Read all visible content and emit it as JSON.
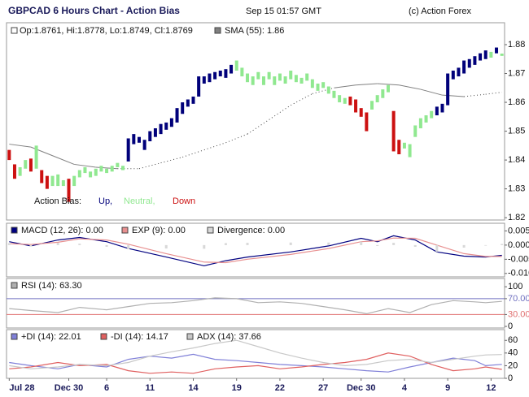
{
  "chart_data": [
    {
      "type": "candlestick",
      "title": "GBPCAD 6 Hours Chart - Action Bias",
      "subtitle": "Sep 15 01:57 GMT",
      "credit": "(c) Action Forex",
      "ohlc_label": "Op:1.8761, Hi:1.8778, Lo:1.8749, Cl:1.8769",
      "open": [
        1.8435,
        1.8385,
        1.8345,
        1.837,
        1.8405,
        1.837,
        1.8365,
        1.8345,
        1.831,
        1.835,
        1.831,
        1.8335,
        1.831,
        1.834,
        1.8355,
        1.836,
        1.8345,
        1.836,
        1.837,
        1.836,
        1.8375,
        1.838,
        1.8395,
        1.8455,
        1.846,
        1.8435,
        1.8465,
        1.848,
        1.849,
        1.8505,
        1.8515,
        1.853,
        1.856,
        1.8585,
        1.8595,
        1.862,
        1.8665,
        1.867,
        1.868,
        1.869,
        1.8685,
        1.87,
        1.871,
        1.872,
        1.87,
        1.869,
        1.868,
        1.869,
        1.868,
        1.869,
        1.8675,
        1.869,
        1.868,
        1.8695,
        1.8685,
        1.8675,
        1.868,
        1.8665,
        1.865,
        1.8655,
        1.864,
        1.8625,
        1.8615,
        1.862,
        1.861,
        1.858,
        1.8565,
        1.8575,
        1.86,
        1.8615,
        1.8635,
        1.857,
        1.847,
        1.844,
        1.8455,
        1.848,
        1.851,
        1.853,
        1.8545,
        1.8555,
        1.8565,
        1.859,
        1.868,
        1.869,
        1.87,
        1.872,
        1.873,
        1.8745,
        1.875,
        1.8775,
        1.877,
        1.8761
      ],
      "close": [
        1.84,
        1.8335,
        1.8375,
        1.84,
        1.836,
        1.845,
        1.832,
        1.83,
        1.8345,
        1.831,
        1.833,
        1.8255,
        1.8345,
        1.8365,
        1.8375,
        1.834,
        1.837,
        1.838,
        1.8355,
        1.838,
        1.839,
        1.8365,
        1.8475,
        1.849,
        1.848,
        1.847,
        1.85,
        1.851,
        1.8525,
        1.853,
        1.8545,
        1.858,
        1.86,
        1.861,
        1.862,
        1.869,
        1.869,
        1.87,
        1.8705,
        1.871,
        1.8715,
        1.873,
        1.8745,
        1.869,
        1.867,
        1.866,
        1.8705,
        1.866,
        1.8705,
        1.866,
        1.87,
        1.8665,
        1.871,
        1.867,
        1.8665,
        1.87,
        1.865,
        1.864,
        1.867,
        1.863,
        1.8615,
        1.86,
        1.8595,
        1.859,
        1.8565,
        1.855,
        1.85,
        1.8605,
        1.8625,
        1.8645,
        1.866,
        1.843,
        1.842,
        1.846,
        1.841,
        1.852,
        1.8545,
        1.8555,
        1.857,
        1.8585,
        1.8595,
        1.87,
        1.871,
        1.872,
        1.8745,
        1.875,
        1.876,
        1.877,
        1.878,
        1.8755,
        1.879,
        1.8769
      ],
      "bias": [
        2,
        2,
        1,
        1,
        2,
        1,
        2,
        2,
        1,
        1,
        1,
        2,
        1,
        1,
        1,
        1,
        1,
        1,
        1,
        1,
        1,
        1,
        0,
        0,
        0,
        0,
        0,
        0,
        0,
        0,
        0,
        0,
        0,
        0,
        0,
        0,
        0,
        0,
        0,
        0,
        0,
        0,
        1,
        1,
        1,
        1,
        1,
        1,
        1,
        1,
        1,
        1,
        1,
        1,
        1,
        1,
        1,
        1,
        1,
        1,
        1,
        1,
        1,
        2,
        2,
        2,
        2,
        1,
        1,
        1,
        1,
        2,
        2,
        1,
        1,
        1,
        1,
        1,
        1,
        0,
        0,
        0,
        0,
        0,
        0,
        0,
        0,
        0,
        0,
        1,
        0,
        1
      ],
      "bias_label": "Action Bias:",
      "bias_legend": [
        {
          "name": "Up,",
          "color": "#00007a"
        },
        {
          "name": "Neutral,",
          "color": "#90e890"
        },
        {
          "name": "Down",
          "color": "#cc1111"
        }
      ],
      "sma": {
        "name": "SMA (55): 1.86",
        "color": "#808080",
        "x": [
          0,
          4,
          8,
          12,
          16,
          20,
          24,
          28,
          32,
          36,
          40,
          44,
          48,
          52,
          56,
          60,
          64,
          68,
          72,
          76,
          80,
          84,
          88,
          91
        ],
        "values": [
          1.8455,
          1.8445,
          1.8415,
          1.8385,
          1.8375,
          1.837,
          1.837,
          1.839,
          1.841,
          1.8435,
          1.846,
          1.849,
          1.854,
          1.859,
          1.863,
          1.865,
          1.866,
          1.8665,
          1.866,
          1.8645,
          1.8625,
          1.862,
          1.8628,
          1.8635
        ]
      },
      "xlim": [
        -0.5,
        91.5
      ],
      "ylim": [
        1.8192,
        1.8876
      ],
      "yticks": [
        1.82,
        1.83,
        1.84,
        1.85,
        1.86,
        1.87,
        1.88
      ]
    },
    {
      "type": "line",
      "series": [
        {
          "name": "MACD (12, 26): 0.00",
          "color": "#000080",
          "x": [
            0,
            4,
            9,
            13,
            18,
            22,
            29,
            36,
            40,
            44,
            52,
            59,
            65,
            68,
            71,
            75,
            79,
            84,
            88,
            91
          ],
          "values": [
            0.0012,
            -0.0003,
            0.0018,
            0.0027,
            0.0012,
            -0.0012,
            -0.0042,
            -0.0073,
            -0.0055,
            -0.0042,
            -0.0024,
            -0.0003,
            0.0024,
            0.0012,
            0.0033,
            0.0018,
            -0.0024,
            -0.0039,
            -0.0042,
            -0.0036
          ]
        },
        {
          "name": "EXP (9): 0.00",
          "color": "#e89090",
          "x": [
            0,
            4,
            9,
            13,
            18,
            22,
            29,
            36,
            40,
            44,
            52,
            59,
            65,
            68,
            71,
            75,
            79,
            84,
            88,
            91
          ],
          "values": [
            0.0005,
            0.0002,
            0.001,
            0.0022,
            0.0018,
            0.0003,
            -0.003,
            -0.006,
            -0.0062,
            -0.005,
            -0.0033,
            -0.0012,
            0.0012,
            0.0015,
            0.0025,
            0.0024,
            0.0,
            -0.003,
            -0.004,
            -0.004
          ]
        },
        {
          "name": "Divergence: 0.00",
          "color": "#d8d8d8",
          "style": "bar",
          "x": [
            0,
            4,
            9,
            13,
            18,
            22,
            29,
            36,
            40,
            44,
            52,
            59,
            65,
            68,
            71,
            75,
            79,
            84,
            88,
            91
          ],
          "values": [
            0.0007,
            -0.0005,
            0.0008,
            0.0005,
            -0.0006,
            -0.0015,
            -0.0012,
            -0.0013,
            0.0007,
            0.0008,
            0.0009,
            0.0009,
            0.0012,
            -0.0003,
            0.0008,
            -0.0006,
            -0.0024,
            -0.0009,
            -0.0002,
            0.0004
          ]
        }
      ],
      "xlim": [
        -0.5,
        91.5
      ],
      "ylim": [
        -0.0112,
        0.0077
      ],
      "yticks": [
        {
          "value": 0.005,
          "label": "0.005"
        },
        {
          "value": 0,
          "label": "0.000"
        },
        {
          "value": -0.005,
          "label": "-0.005"
        },
        {
          "value": -0.01,
          "label": "-0.010"
        }
      ]
    },
    {
      "type": "line",
      "series": [
        {
          "name": "RSI (14): 63.30",
          "color": "#b0b0b0",
          "x": [
            0,
            4,
            9,
            13,
            18,
            22,
            26,
            30,
            34,
            38,
            42,
            46,
            50,
            54,
            58,
            62,
            66,
            70,
            74,
            78,
            82,
            86,
            88,
            91
          ],
          "values": [
            45,
            40,
            35,
            48,
            42,
            50,
            58,
            60,
            65,
            72,
            70,
            60,
            62,
            58,
            50,
            42,
            32,
            45,
            35,
            55,
            65,
            62,
            60,
            63.3
          ]
        }
      ],
      "levels": [
        {
          "value": 70,
          "color": "#7070c0"
        },
        {
          "value": 30,
          "color": "#e07070"
        }
      ],
      "xlim": [
        -0.5,
        91.5
      ],
      "ylim": [
        -4,
        121
      ],
      "yticks": [
        100,
        {
          "value": 70,
          "label": "70.00"
        },
        {
          "value": 30,
          "label": "30.00"
        },
        0
      ]
    },
    {
      "type": "line",
      "series": [
        {
          "name": "+DI (14): 22.01",
          "color": "#8080d8",
          "x": [
            0,
            4,
            9,
            13,
            18,
            22,
            26,
            30,
            34,
            38,
            42,
            46,
            50,
            54,
            58,
            62,
            66,
            70,
            74,
            78,
            82,
            86,
            88,
            91
          ],
          "values": [
            25,
            20,
            15,
            22,
            18,
            30,
            35,
            32,
            38,
            30,
            28,
            25,
            22,
            20,
            18,
            15,
            12,
            10,
            18,
            25,
            32,
            28,
            20,
            22.01
          ]
        },
        {
          "name": "-DI (14): 14.17",
          "color": "#e06060",
          "x": [
            0,
            4,
            9,
            13,
            18,
            22,
            26,
            30,
            34,
            38,
            42,
            46,
            50,
            54,
            58,
            62,
            66,
            70,
            74,
            78,
            82,
            86,
            88,
            91
          ],
          "values": [
            15,
            18,
            25,
            20,
            22,
            12,
            8,
            10,
            8,
            15,
            18,
            20,
            15,
            18,
            22,
            25,
            30,
            40,
            35,
            22,
            12,
            15,
            18,
            14.17
          ]
        },
        {
          "name": "ADX (14): 37.66",
          "color": "#c8c8c8",
          "x": [
            0,
            4,
            9,
            13,
            18,
            22,
            26,
            30,
            34,
            38,
            42,
            46,
            50,
            54,
            58,
            62,
            66,
            70,
            74,
            78,
            82,
            86,
            88,
            91
          ],
          "values": [
            20,
            15,
            18,
            22,
            20,
            25,
            35,
            42,
            48,
            55,
            60,
            50,
            40,
            32,
            25,
            20,
            22,
            28,
            30,
            25,
            30,
            35,
            37,
            37.66
          ]
        }
      ],
      "xlim": [
        -0.5,
        91.5
      ],
      "ylim": [
        0,
        77
      ],
      "yticks": [
        60,
        40,
        20,
        0
      ],
      "xticks": [
        {
          "value": 0,
          "label": "Jul 28"
        },
        {
          "value": 11,
          "label": "Dec 30"
        },
        {
          "value": 18,
          "label": "6"
        },
        {
          "value": 26,
          "label": "11"
        },
        {
          "value": 34,
          "label": "14"
        },
        {
          "value": 42,
          "label": "19"
        },
        {
          "value": 50,
          "label": "22"
        },
        {
          "value": 58,
          "label": "27"
        },
        {
          "value": 65,
          "label": "Dec 30"
        },
        {
          "value": 73,
          "label": "4"
        },
        {
          "value": 81,
          "label": "9"
        },
        {
          "value": 89,
          "label": "12"
        }
      ]
    }
  ]
}
